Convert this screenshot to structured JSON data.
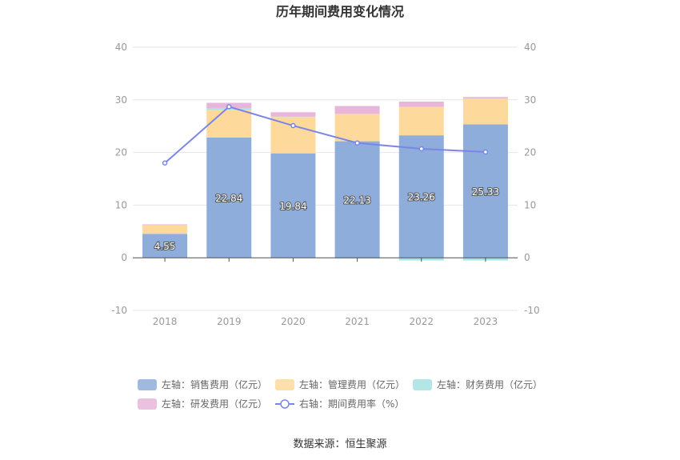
{
  "chart_data": {
    "type": "bar",
    "title": "历年期间费用变化情况",
    "categories": [
      "2018",
      "2019",
      "2020",
      "2021",
      "2022",
      "2023"
    ],
    "series": [
      {
        "name": "左轴：销售费用（亿元）",
        "axis": "left",
        "kind": "bar",
        "color": "#8eaddb",
        "values": [
          4.55,
          22.84,
          19.84,
          22.13,
          23.26,
          25.33
        ],
        "show_labels": true
      },
      {
        "name": "左轴：管理费用（亿元）",
        "axis": "left",
        "kind": "bar",
        "color": "#fdd99b",
        "values": [
          1.6,
          5.3,
          6.9,
          5.2,
          5.4,
          4.9
        ]
      },
      {
        "name": "左轴：财务费用（亿元）",
        "axis": "left",
        "kind": "bar",
        "color": "#a6e3e3",
        "values": [
          0.1,
          0.3,
          0.1,
          -0.15,
          -0.5,
          -0.5
        ]
      },
      {
        "name": "左轴：研发费用（亿元）",
        "axis": "left",
        "kind": "bar",
        "color": "#e7b6da",
        "values": [
          0.1,
          1.0,
          0.8,
          1.5,
          1.0,
          0.3
        ]
      },
      {
        "name": "右轴：期间费用率（%）",
        "axis": "right",
        "kind": "line",
        "color": "#7b85e8",
        "values": [
          18.0,
          28.7,
          25.1,
          21.8,
          20.7,
          20.1
        ]
      }
    ],
    "y_left": {
      "min": -10,
      "max": 40,
      "ticks": [
        "40",
        "30",
        "20",
        "10",
        "0",
        "-10"
      ]
    },
    "y_right": {
      "min": -10,
      "max": 40,
      "ticks": [
        "40",
        "30",
        "20",
        "10",
        "0",
        "-10"
      ]
    },
    "grid": true,
    "legend_position": "bottom",
    "stacked": true
  },
  "source": "数据来源：恒生聚源"
}
